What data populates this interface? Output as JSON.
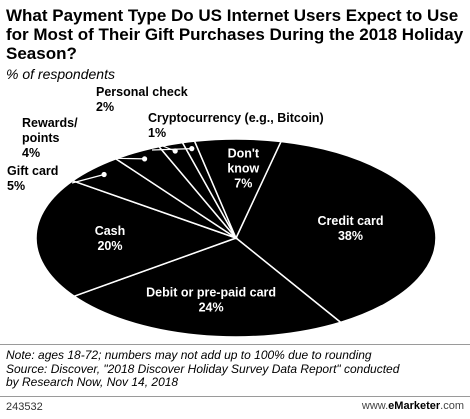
{
  "title": "What Payment Type Do US Internet Users Expect to Use for Most of Their Gift Purchases During the 2018 Holiday Season?",
  "subtitle": "% of respondents",
  "chart_data": {
    "type": "pie",
    "categories": [
      "Credit card",
      "Debit or pre-paid card",
      "Cash",
      "Gift card",
      "Rewards/ points",
      "Personal check",
      "Cryptocurrency (e.g., Bitcoin)",
      "Don't know"
    ],
    "values": [
      38,
      24,
      20,
      5,
      4,
      2,
      1,
      7
    ],
    "value_labels": [
      "38%",
      "24%",
      "20%",
      "5%",
      "4%",
      "2%",
      "1%",
      "7%"
    ],
    "colors": {
      "slice": "#000000",
      "border": "#ffffff",
      "label": "#ffffff",
      "external_label": "#000000"
    }
  },
  "notes": [
    "Note: ages 18-72; numbers may not add up to 100% due to rounding",
    "Source: Discover, \"2018 Discover Holiday Survey Data Report\" conducted",
    "by Research Now, Nov 14, 2018"
  ],
  "footer": {
    "id": "243532",
    "brand_prefix": "www.",
    "brand_name": "eMarketer",
    "brand_suffix": ".com"
  }
}
